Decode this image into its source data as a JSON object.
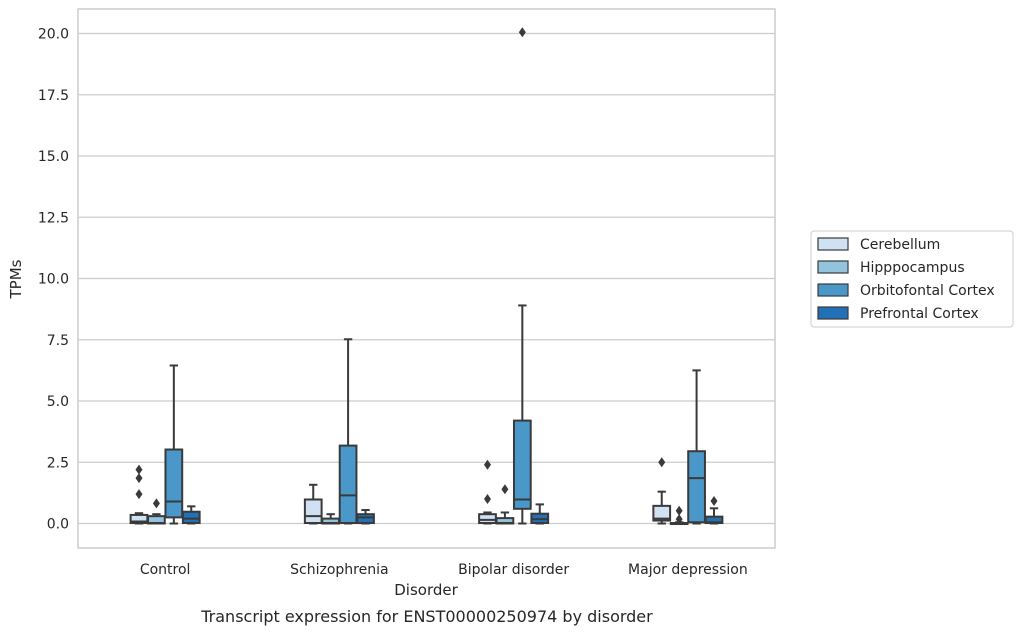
{
  "chart_data": {
    "type": "box",
    "xlabel": "Disorder",
    "ylabel": "TPMs",
    "caption": "Transcript expression for ENST00000250974 by disorder",
    "ylim": [
      -1.0,
      21.0
    ],
    "yticks": [
      "0.0",
      "2.5",
      "5.0",
      "7.5",
      "10.0",
      "12.5",
      "15.0",
      "17.5",
      "20.0"
    ],
    "grid": "horizontal",
    "legend_position": "right",
    "categories": [
      "Control",
      "Schizophrenia",
      "Bipolar disorder",
      "Major depression"
    ],
    "series": [
      {
        "name": "Cerebellum",
        "color": "#cfe1f2",
        "boxes": [
          {
            "q1": 0.02,
            "median": 0.08,
            "q3": 0.35,
            "whisker_low": 0.0,
            "whisker_high": 0.42,
            "outliers": [
              1.2,
              1.85,
              2.2
            ]
          },
          {
            "q1": 0.02,
            "median": 0.3,
            "q3": 0.98,
            "whisker_low": 0.0,
            "whisker_high": 1.58,
            "outliers": []
          },
          {
            "q1": 0.02,
            "median": 0.15,
            "q3": 0.38,
            "whisker_low": 0.0,
            "whisker_high": 0.45,
            "outliers": [
              1.0,
              2.4
            ]
          },
          {
            "q1": 0.12,
            "median": 0.2,
            "q3": 0.72,
            "whisker_low": 0.0,
            "whisker_high": 1.3,
            "outliers": [
              2.5
            ]
          }
        ]
      },
      {
        "name": "Hipppocampus",
        "color": "#93c4de",
        "boxes": [
          {
            "q1": 0.0,
            "median": 0.02,
            "q3": 0.3,
            "whisker_low": 0.0,
            "whisker_high": 0.38,
            "outliers": [
              0.82
            ]
          },
          {
            "q1": 0.0,
            "median": 0.02,
            "q3": 0.2,
            "whisker_low": 0.0,
            "whisker_high": 0.38,
            "outliers": []
          },
          {
            "q1": 0.0,
            "median": 0.02,
            "q3": 0.22,
            "whisker_low": 0.0,
            "whisker_high": 0.45,
            "outliers": [
              1.4
            ]
          },
          {
            "q1": 0.0,
            "median": 0.0,
            "q3": 0.02,
            "whisker_low": 0.0,
            "whisker_high": 0.05,
            "outliers": [
              0.18,
              0.52
            ]
          }
        ]
      },
      {
        "name": "Orbitofontal Cortex",
        "color": "#4a98c9",
        "boxes": [
          {
            "q1": 0.25,
            "median": 0.9,
            "q3": 3.02,
            "whisker_low": 0.0,
            "whisker_high": 6.45,
            "outliers": []
          },
          {
            "q1": 0.02,
            "median": 1.15,
            "q3": 3.18,
            "whisker_low": 0.0,
            "whisker_high": 7.52,
            "outliers": []
          },
          {
            "q1": 0.6,
            "median": 0.98,
            "q3": 4.2,
            "whisker_low": 0.0,
            "whisker_high": 8.9,
            "outliers": [
              20.05
            ]
          },
          {
            "q1": 0.05,
            "median": 1.85,
            "q3": 2.95,
            "whisker_low": 0.0,
            "whisker_high": 6.25,
            "outliers": []
          }
        ]
      },
      {
        "name": "Prefrontal Cortex",
        "color": "#2270b5",
        "boxes": [
          {
            "q1": 0.02,
            "median": 0.2,
            "q3": 0.48,
            "whisker_low": 0.0,
            "whisker_high": 0.7,
            "outliers": []
          },
          {
            "q1": 0.02,
            "median": 0.25,
            "q3": 0.38,
            "whisker_low": 0.0,
            "whisker_high": 0.55,
            "outliers": []
          },
          {
            "q1": 0.02,
            "median": 0.18,
            "q3": 0.4,
            "whisker_low": 0.0,
            "whisker_high": 0.78,
            "outliers": []
          },
          {
            "q1": 0.02,
            "median": 0.05,
            "q3": 0.28,
            "whisker_low": 0.0,
            "whisker_high": 0.62,
            "outliers": [
              0.92
            ]
          }
        ]
      }
    ]
  }
}
